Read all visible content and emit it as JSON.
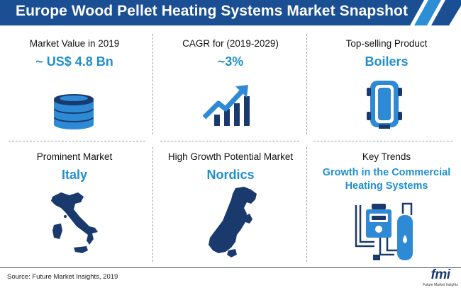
{
  "title": "Europe Wood Pellet Heating Systems Market Snapshot",
  "colors": {
    "banner": "#1a4f93",
    "banner_accent": "#2c8fd6",
    "value_text": "#1f8fd0",
    "icon_dark": "#1a3a6e",
    "icon_blue": "#2f8ad6"
  },
  "metrics": [
    {
      "label": "Market Value in 2019",
      "value": "~ US$ 4.8 Bn",
      "icon": "coin-stack-icon"
    },
    {
      "label": "CAGR for (2019-2029)",
      "value": "~3%",
      "icon": "growth-chart-icon"
    },
    {
      "label": "Top-selling Product",
      "value": "Boilers",
      "icon": "boiler-icon"
    },
    {
      "label": "Prominent Market",
      "value": "Italy",
      "icon": "italy-map-icon"
    },
    {
      "label": "High Growth Potential Market",
      "value": "Nordics",
      "icon": "nordics-map-icon"
    },
    {
      "label": "Key Trends",
      "value": "Growth in the Commercial Heating Systems",
      "icon": "heating-system-icon"
    }
  ],
  "source": "Source: Future Market Insights, 2019",
  "logo": {
    "text": "fmi",
    "tagline": "Future Market Insights"
  }
}
